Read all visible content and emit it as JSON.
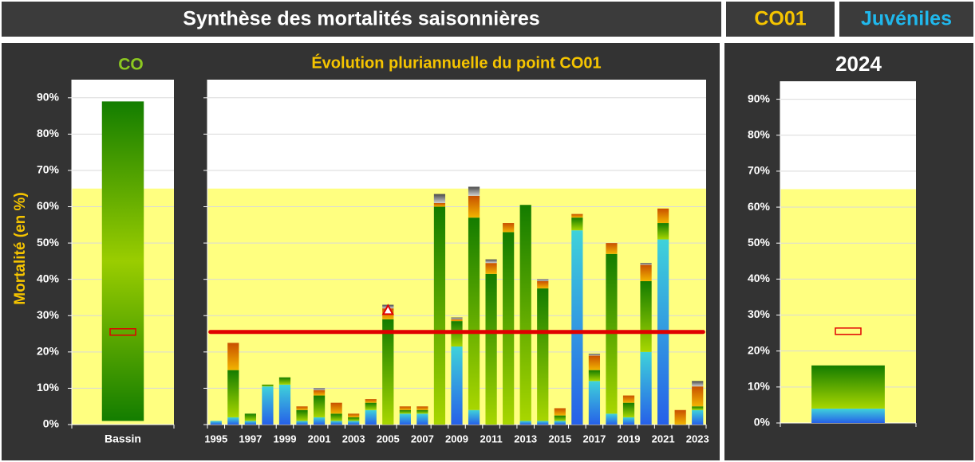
{
  "header": {
    "title": "Synthèse des mortalités saisonnières",
    "site": "CO01",
    "stage": "Juvéniles"
  },
  "chart_data": [
    {
      "type": "range_bar",
      "title": "CO",
      "ylabel": "Mortalité (en %)",
      "categories": [
        "Bassin"
      ],
      "low": [
        1
      ],
      "high": [
        89
      ],
      "colors": [
        "#137d00",
        "#9acd00",
        "#137d00"
      ],
      "ylim": [
        0,
        95
      ],
      "yticks": [
        {
          "value": 0,
          "label": "0%"
        },
        {
          "value": 10,
          "label": "10%"
        },
        {
          "value": 20,
          "label": "20%"
        },
        {
          "value": 30,
          "label": "30%"
        },
        {
          "value": 40,
          "label": "40%"
        },
        {
          "value": 50,
          "label": "50%"
        },
        {
          "value": 60,
          "label": "60%"
        },
        {
          "value": 70,
          "label": "70%"
        },
        {
          "value": 80,
          "label": "80%"
        },
        {
          "value": 90,
          "label": "90%"
        }
      ],
      "tick_labels": true,
      "grid": true,
      "band": [
        0,
        65
      ],
      "band_color": "#ffff80",
      "reference": 25.5,
      "reference_style": "box",
      "reference_color": "#e00000"
    },
    {
      "type": "stacked_bar",
      "title": "Évolution pluriannuelle du point CO01",
      "categories": [
        "1995",
        null,
        "1997",
        null,
        "1999",
        null,
        "2001",
        null,
        "2003",
        null,
        "2005",
        null,
        "2007",
        null,
        "2009",
        null,
        "2011",
        null,
        "2013",
        null,
        "2015",
        null,
        "2017",
        null,
        "2019",
        null,
        "2021",
        null,
        "2023"
      ],
      "series": [
        {
          "colors": [
            "#2660e8",
            "#3fd2da"
          ],
          "values": [
            1,
            2,
            1,
            10.5,
            11,
            1,
            2,
            1,
            1,
            4,
            0,
            3,
            3,
            0,
            21.5,
            4,
            0,
            0,
            1,
            1,
            1,
            53.5,
            12,
            3,
            2,
            20,
            51,
            0,
            4
          ]
        },
        {
          "colors": [
            "#a8d600",
            "#147c00"
          ],
          "values": [
            0,
            13,
            2,
            0.5,
            2,
            3,
            6,
            2,
            1,
            2,
            29,
            1,
            1,
            60,
            7,
            53,
            41.5,
            53,
            59.5,
            36.5,
            1.5,
            3.5,
            3,
            44,
            4,
            19.5,
            4.5,
            0,
            1
          ]
        },
        {
          "colors": [
            "#f2b400",
            "#c85000"
          ],
          "values": [
            0,
            7.5,
            0,
            0,
            0,
            1,
            1.5,
            3,
            1,
            1,
            3,
            1,
            1,
            1,
            0.5,
            6,
            3,
            2.5,
            0,
            2,
            2,
            1,
            4,
            3,
            2,
            4.5,
            4,
            4,
            5.5
          ]
        },
        {
          "colors": [
            "#cfcfcf",
            "#4a4a4a"
          ],
          "values": [
            0,
            0,
            0,
            0,
            0,
            0,
            0.5,
            0,
            0,
            0,
            1,
            0,
            0,
            2.5,
            0.5,
            2.5,
            1,
            0,
            0,
            0.5,
            0,
            0,
            0.5,
            0,
            0,
            0.5,
            0,
            0,
            1.5
          ]
        }
      ],
      "markers": [
        null,
        null,
        null,
        null,
        null,
        null,
        null,
        null,
        null,
        null,
        31.5,
        null,
        null,
        null,
        null,
        null,
        null,
        null,
        null,
        null,
        null,
        null,
        null,
        null,
        null,
        null,
        null,
        null,
        null
      ],
      "ylim": [
        0,
        95
      ],
      "yticks": [
        0,
        10,
        20,
        30,
        40,
        50,
        60,
        70,
        80,
        90
      ],
      "tick_labels": false,
      "grid": true,
      "band": [
        0,
        65
      ],
      "band_color": "#ffff80",
      "reference": 25.5,
      "reference_style": "line",
      "reference_color": "#e00000"
    },
    {
      "type": "stacked_bar",
      "title": "2024",
      "categories": [
        null
      ],
      "series": [
        {
          "colors": [
            "#2660e8",
            "#3fd2da"
          ],
          "values": [
            4
          ]
        },
        {
          "colors": [
            "#a8d600",
            "#147c00"
          ],
          "values": [
            12
          ]
        }
      ],
      "ylim": [
        0,
        95
      ],
      "yticks": [
        {
          "value": 0,
          "label": "0%"
        },
        {
          "value": 10,
          "label": "10%"
        },
        {
          "value": 20,
          "label": "20%"
        },
        {
          "value": 30,
          "label": "30%"
        },
        {
          "value": 40,
          "label": "40%"
        },
        {
          "value": 50,
          "label": "50%"
        },
        {
          "value": 60,
          "label": "60%"
        },
        {
          "value": 70,
          "label": "70%"
        },
        {
          "value": 80,
          "label": "80%"
        },
        {
          "value": 90,
          "label": "90%"
        }
      ],
      "tick_labels": true,
      "grid": true,
      "band": [
        0,
        65
      ],
      "band_color": "#ffff80",
      "reference": 25.5,
      "reference_style": "box",
      "reference_color": "#e00000"
    }
  ]
}
